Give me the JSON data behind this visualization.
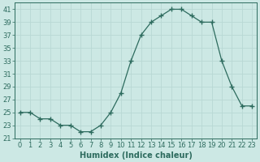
{
  "x": [
    0,
    1,
    2,
    3,
    4,
    5,
    6,
    7,
    8,
    9,
    10,
    11,
    12,
    13,
    14,
    15,
    16,
    17,
    18,
    19,
    20,
    21,
    22,
    23
  ],
  "y": [
    25,
    25,
    24,
    24,
    23,
    23,
    22,
    22,
    23,
    25,
    28,
    33,
    37,
    39,
    40,
    41,
    41,
    40,
    39,
    39,
    33,
    29,
    26,
    26
  ],
  "line_color": "#2d6b5e",
  "marker": "+",
  "marker_size": 4,
  "marker_lw": 1.0,
  "bg_color": "#cce8e4",
  "grid_color": "#b8d8d4",
  "xlabel": "Humidex (Indice chaleur)",
  "xlabel_fontsize": 7,
  "tick_fontsize": 6,
  "ylim": [
    21,
    42
  ],
  "xlim": [
    -0.5,
    23.5
  ],
  "yticks": [
    21,
    23,
    25,
    27,
    29,
    31,
    33,
    35,
    37,
    39,
    41
  ],
  "xticks": [
    0,
    1,
    2,
    3,
    4,
    5,
    6,
    7,
    8,
    9,
    10,
    11,
    12,
    13,
    14,
    15,
    16,
    17,
    18,
    19,
    20,
    21,
    22,
    23
  ]
}
